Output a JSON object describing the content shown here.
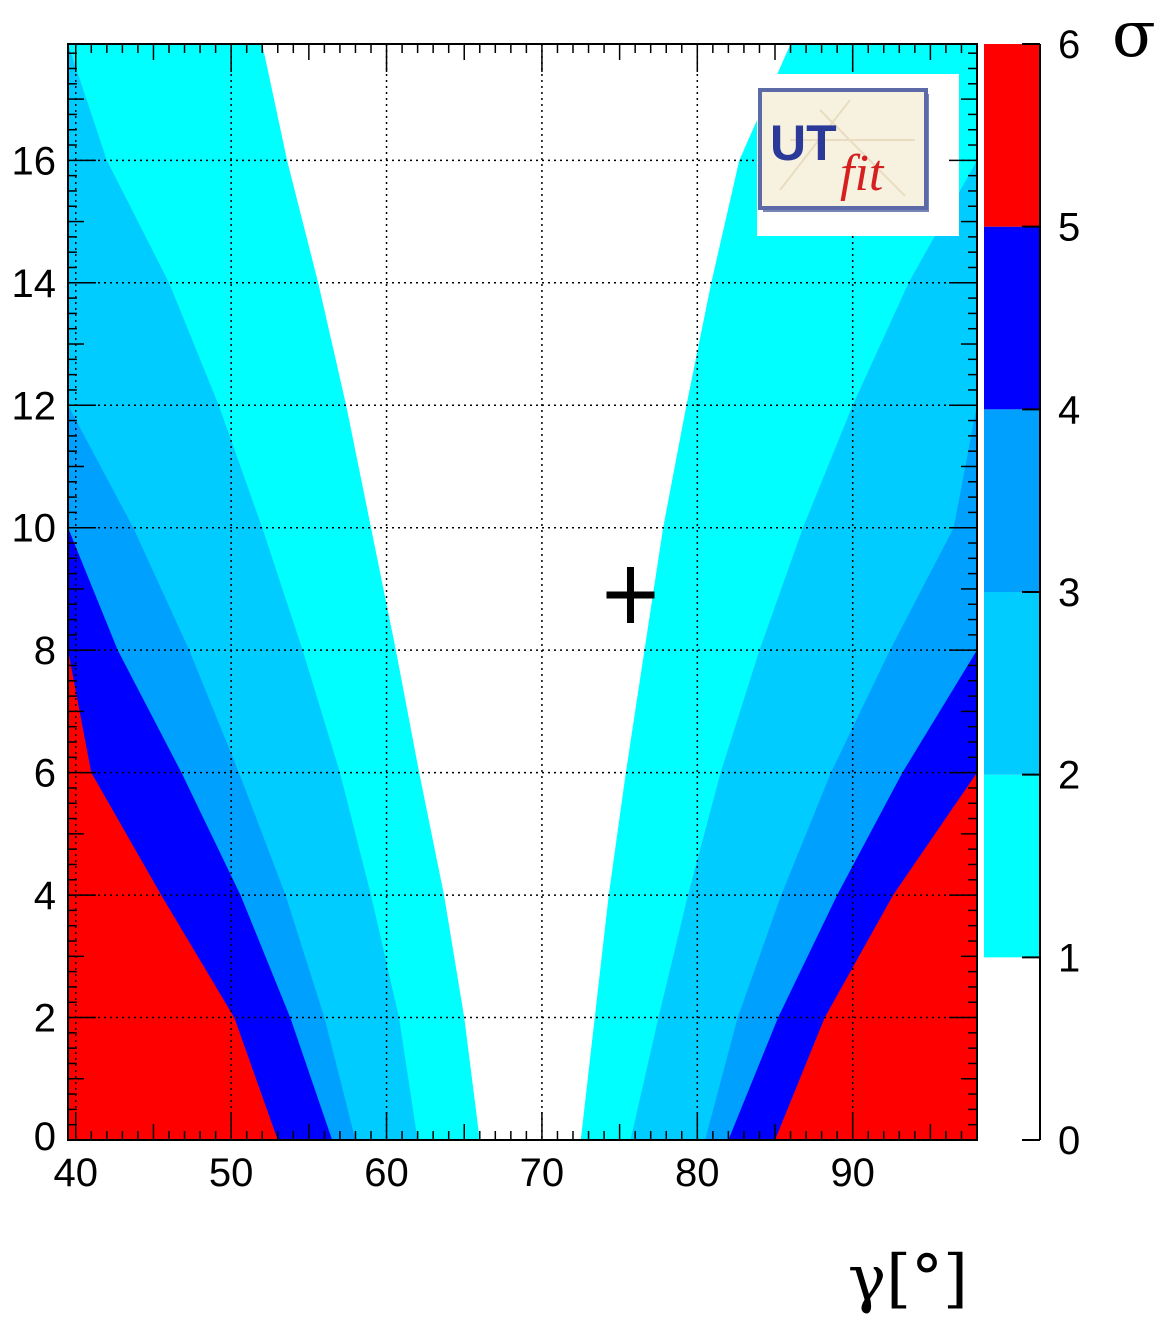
{
  "chart_data": {
    "type": "heatmap",
    "title": "",
    "xlabel": "γ[°]",
    "ylabel": "",
    "xlim": [
      39.5,
      98
    ],
    "ylim": [
      0,
      17.9
    ],
    "x_ticks": [
      "40",
      "50",
      "60",
      "70",
      "80",
      "90"
    ],
    "y_ticks": [
      "0",
      "2",
      "4",
      "6",
      "8",
      "10",
      "12",
      "14",
      "16"
    ],
    "grid": true,
    "colorbar": {
      "label": "σ",
      "ticks": [
        "0",
        "1",
        "2",
        "3",
        "4",
        "5",
        "6"
      ],
      "levels": [
        {
          "from": 0,
          "to": 1,
          "color": "#ffffff"
        },
        {
          "from": 1,
          "to": 2,
          "color": "#00ffff"
        },
        {
          "from": 2,
          "to": 3,
          "color": "#00ccff"
        },
        {
          "from": 3,
          "to": 4,
          "color": "#00a0ff"
        },
        {
          "from": 4,
          "to": 5,
          "color": "#0000ff"
        },
        {
          "from": 5,
          "to": 6,
          "color": "#ff0000"
        }
      ]
    },
    "contour_boundaries": {
      "description": "gamma value of each sigma-level boundary at given y, left and right branches",
      "y": [
        0,
        2,
        4,
        6,
        8,
        10,
        12,
        14,
        16,
        17.9
      ],
      "left": {
        "1": [
          66,
          65,
          63.7,
          62.1,
          60.6,
          59,
          57.4,
          55.6,
          53.6,
          52
        ],
        "2": [
          62,
          60.8,
          59,
          57,
          54.6,
          52,
          49.2,
          46,
          42,
          39.5
        ],
        "3": [
          58,
          56,
          53.5,
          50.5,
          47.3,
          43.7,
          39.5,
          39.5,
          39.5,
          39.5
        ],
        "4": [
          56.5,
          53.8,
          50.6,
          46.8,
          42.7,
          39.5,
          39.5,
          39.5,
          39.5,
          39.5
        ],
        "5": [
          53,
          50.2,
          45.5,
          41,
          39.5,
          39.5,
          39.5,
          39.5,
          39.5,
          39.5
        ]
      },
      "right": {
        "1": [
          72.5,
          73.4,
          74.3,
          75.4,
          76.6,
          77.8,
          79.3,
          80.9,
          82.7,
          86
        ],
        "2": [
          75.7,
          77.5,
          79.4,
          81.5,
          84,
          86.8,
          90,
          93.6,
          98,
          98
        ],
        "3": [
          80.5,
          82.6,
          85.4,
          88.6,
          92.4,
          96.5,
          98,
          98,
          98,
          98
        ],
        "4": [
          82,
          85.2,
          89,
          93.2,
          98,
          98,
          98,
          98,
          98,
          98
        ],
        "5": [
          85,
          88.2,
          92.6,
          98,
          98,
          98,
          98,
          98,
          98,
          98
        ]
      }
    },
    "marker": {
      "symbol": "+",
      "x": 75.7,
      "y": 8.9
    },
    "logo": "UTfit"
  }
}
